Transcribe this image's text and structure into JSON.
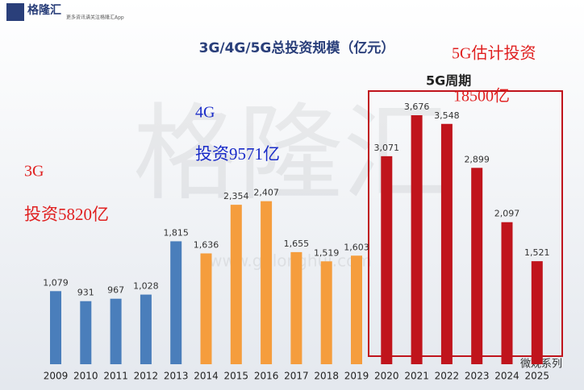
{
  "chart_data": {
    "type": "bar",
    "header": {
      "brand": "格隆汇",
      "slogan": "更多资讯请关注格隆汇App"
    },
    "title": "3G/4G/5G总投资规模（亿元）",
    "categories": [
      "2009",
      "2010",
      "2011",
      "2012",
      "2013",
      "2014",
      "2015",
      "2016",
      "2017",
      "2018",
      "2019",
      "2020",
      "2021",
      "2022",
      "2023",
      "2024",
      "2025"
    ],
    "values": [
      1079,
      931,
      967,
      1028,
      1815,
      1636,
      2354,
      2407,
      1655,
      1519,
      1603,
      3071,
      3676,
      3548,
      2899,
      2097,
      1521
    ],
    "value_labels": [
      "1,079",
      "931",
      "967",
      "1,028",
      "1,815",
      "1,636",
      "2,354",
      "2,407",
      "1,655",
      "1,519",
      "1,603",
      "3,071",
      "3,676",
      "3,548",
      "2,899",
      "2,097",
      "1,521"
    ],
    "colors": [
      "#4a7ebb",
      "#4a7ebb",
      "#4a7ebb",
      "#4a7ebb",
      "#4a7ebb",
      "#f59d3d",
      "#f59d3d",
      "#f59d3d",
      "#f59d3d",
      "#f59d3d",
      "#f59d3d",
      "#c0141c",
      "#c0141c",
      "#c0141c",
      "#c0141c",
      "#c0141c",
      "#c0141c"
    ],
    "annotations": {
      "g3": "3G",
      "g3_invest": "投资5820亿",
      "g4": "4G",
      "g4_invest": "投资9571亿",
      "g5": "5G估计投资",
      "g5_invest": "18500亿",
      "g5_cycle": "5G周期"
    },
    "watermark": {
      "main": "格隆汇",
      "url": "www.gelonghui.com"
    },
    "footer": "微观系列"
  }
}
